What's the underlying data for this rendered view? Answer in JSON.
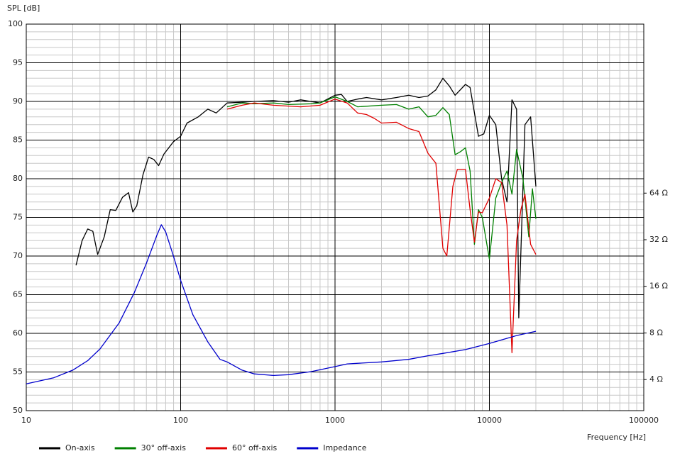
{
  "chart_data": {
    "type": "line",
    "ylabel": "SPL [dB]",
    "xlabel": "Frequency [Hz]",
    "xscale": "log",
    "xlim": [
      10,
      100000
    ],
    "xticks": [
      10,
      100,
      1000,
      10000,
      100000
    ],
    "ylim": [
      50,
      100
    ],
    "yticks": [
      50,
      55,
      60,
      65,
      70,
      75,
      80,
      85,
      90,
      95,
      100
    ],
    "y2scale": "log",
    "y2lim": [
      2.52,
      790
    ],
    "y2ticks": [
      {
        "value": 4,
        "label": "4 Ω"
      },
      {
        "value": 8,
        "label": "8 Ω"
      },
      {
        "value": 16,
        "label": "16 Ω"
      },
      {
        "value": 32,
        "label": "32 Ω"
      },
      {
        "value": 64,
        "label": "64 Ω"
      }
    ],
    "grid": true,
    "legend": "bottom",
    "series": [
      {
        "name": "On-axis",
        "color": "#000000",
        "x": [
          21,
          23,
          25,
          27,
          29,
          32,
          35,
          38,
          42,
          46,
          49,
          52,
          57,
          62,
          67,
          72,
          78,
          90,
          100,
          110,
          130,
          150,
          170,
          200,
          250,
          300,
          400,
          500,
          600,
          800,
          1000,
          1100,
          1200,
          1400,
          1600,
          2000,
          2500,
          3000,
          3500,
          4000,
          4500,
          5000,
          5500,
          6000,
          7000,
          7500,
          8500,
          9200,
          10000,
          11000,
          12000,
          13000,
          14000,
          15000,
          15500,
          17000,
          18500,
          20000
        ],
        "values": [
          68.8,
          72,
          73.5,
          73.2,
          70.2,
          72.5,
          76,
          75.9,
          77.6,
          78.2,
          75.7,
          76.5,
          80.5,
          82.8,
          82.5,
          81.7,
          83.2,
          84.8,
          85.5,
          87.2,
          88,
          89,
          88.5,
          89.8,
          89.9,
          90,
          90.1,
          89.9,
          90.2,
          89.8,
          90.8,
          90.9,
          90,
          90.3,
          90.5,
          90.2,
          90.5,
          90.8,
          90.5,
          90.7,
          91.5,
          93,
          92,
          90.8,
          92.2,
          91.8,
          85.5,
          85.8,
          88.2,
          87,
          80,
          77,
          90.2,
          89,
          62,
          87,
          88,
          79
        ]
      },
      {
        "name": "30° off-axis",
        "color": "#008000",
        "x": [
          200,
          250,
          300,
          400,
          500,
          700,
          800,
          1000,
          1200,
          1400,
          2000,
          2500,
          3000,
          3500,
          4000,
          4500,
          5000,
          5500,
          6000,
          6500,
          7000,
          7500,
          8000,
          8500,
          9000,
          10000,
          11000,
          12000,
          13000,
          14000,
          15000,
          16500,
          18000,
          19000,
          20000
        ],
        "values": [
          89.3,
          89.8,
          89.7,
          89.8,
          89.6,
          89.7,
          89.8,
          90.6,
          90,
          89.3,
          89.5,
          89.6,
          89,
          89.3,
          88,
          88.2,
          89.2,
          88.3,
          83.1,
          83.5,
          84,
          81,
          71.5,
          76,
          75,
          69.6,
          77.5,
          79.5,
          81,
          78,
          83.8,
          80,
          72.5,
          78.7,
          74.8
        ]
      },
      {
        "name": "60° off-axis",
        "color": "#e00000",
        "x": [
          200,
          250,
          300,
          400,
          600,
          800,
          1000,
          1200,
          1400,
          1600,
          1800,
          2000,
          2500,
          3000,
          3500,
          4000,
          4500,
          5000,
          5300,
          5800,
          6200,
          7000,
          7500,
          8000,
          8500,
          9000,
          10000,
          11000,
          12000,
          13000,
          14000,
          15000,
          16000,
          17000,
          18500,
          20000
        ],
        "values": [
          89,
          89.5,
          89.8,
          89.5,
          89.3,
          89.5,
          90.3,
          89.8,
          88.5,
          88.3,
          87.8,
          87.2,
          87.3,
          86.5,
          86.1,
          83.3,
          82,
          71,
          70,
          79,
          81.2,
          81.2,
          76,
          71.8,
          75.7,
          75.6,
          77.5,
          80,
          79.5,
          74,
          57.5,
          72,
          76,
          78,
          71.5,
          70.2
        ]
      },
      {
        "name": "Impedance",
        "color": "#0000cc",
        "axis": "y2",
        "x": [
          10,
          15,
          20,
          25,
          30,
          40,
          50,
          60,
          70,
          75,
          80,
          90,
          100,
          120,
          150,
          180,
          200,
          250,
          300,
          400,
          500,
          700,
          1000,
          1200,
          2000,
          3000,
          4000,
          5000,
          7000,
          10000,
          15000,
          20000
        ],
        "values": [
          3.75,
          4.1,
          4.6,
          5.3,
          6.3,
          9.3,
          14.5,
          22.5,
          34,
          40,
          36,
          25,
          17.5,
          10.5,
          7,
          5.4,
          5.2,
          4.6,
          4.35,
          4.25,
          4.3,
          4.5,
          4.85,
          5.05,
          5.2,
          5.4,
          5.7,
          5.9,
          6.25,
          6.85,
          7.7,
          8.2
        ]
      }
    ]
  }
}
